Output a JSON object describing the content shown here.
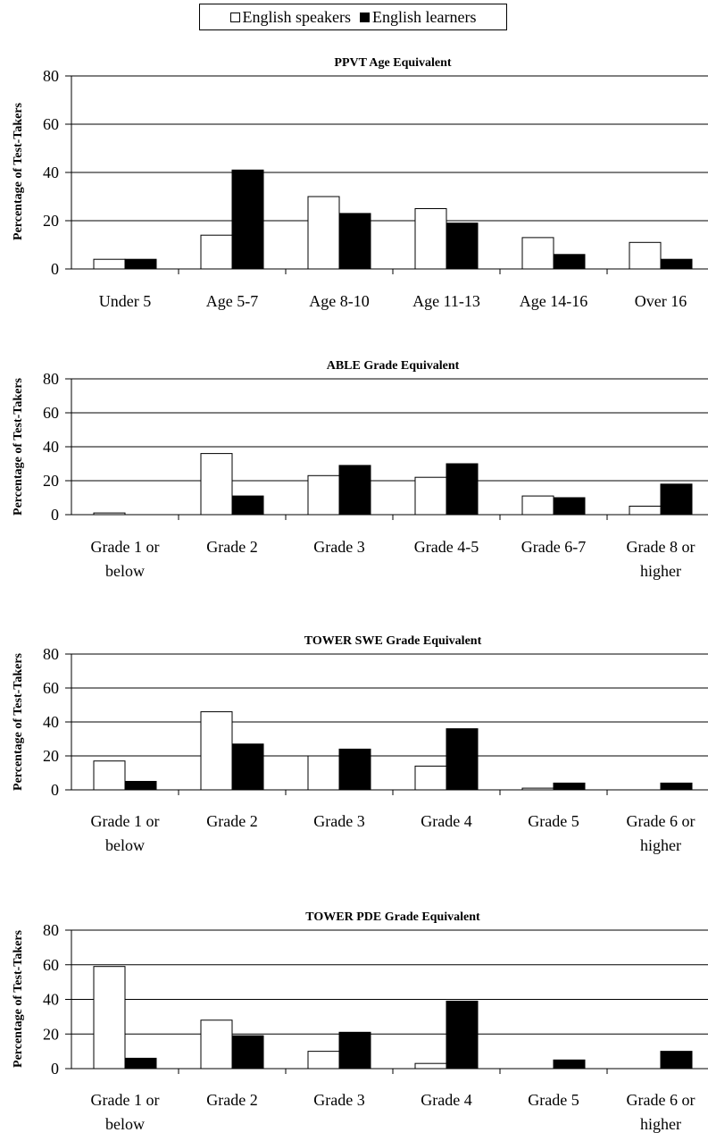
{
  "legend": {
    "english_speakers": "English speakers",
    "english_learners": "English learners"
  },
  "colors": {
    "english_speakers": "#ffffff",
    "english_learners": "#000000"
  },
  "chart_data": [
    {
      "type": "bar",
      "title": "PPVT Age Equivalent",
      "ylabel": "Percentage of Test-Takers",
      "ylim": [
        0,
        80
      ],
      "yticks": [
        "0",
        "20",
        "40",
        "60",
        "80"
      ],
      "grid": true,
      "categories": [
        [
          "Under 5"
        ],
        [
          "Age 5-7"
        ],
        [
          "Age 8-10"
        ],
        [
          "Age 11-13"
        ],
        [
          "Age 14-16"
        ],
        [
          "Over 16"
        ]
      ],
      "series": [
        {
          "name": "English speakers",
          "values": [
            4,
            14,
            30,
            25,
            13,
            11
          ]
        },
        {
          "name": "English learners",
          "values": [
            4,
            41,
            23,
            19,
            6,
            4
          ]
        }
      ]
    },
    {
      "type": "bar",
      "title": "ABLE Grade Equivalent",
      "ylabel": "Percentage of Test-Takers",
      "ylim": [
        0,
        80
      ],
      "yticks": [
        "0",
        "20",
        "40",
        "60",
        "80"
      ],
      "grid": true,
      "categories": [
        [
          "Grade 1 or",
          "below"
        ],
        [
          "Grade 2"
        ],
        [
          "Grade 3"
        ],
        [
          "Grade 4-5"
        ],
        [
          "Grade 6-7"
        ],
        [
          "Grade 8 or",
          "higher"
        ]
      ],
      "series": [
        {
          "name": "English speakers",
          "values": [
            1,
            36,
            23,
            22,
            11,
            5
          ]
        },
        {
          "name": "English learners",
          "values": [
            0,
            11,
            29,
            30,
            10,
            18
          ]
        }
      ]
    },
    {
      "type": "bar",
      "title": "TOWER SWE Grade Equivalent",
      "ylabel": "Percentage of Test-Takers",
      "ylim": [
        0,
        80
      ],
      "yticks": [
        "0",
        "20",
        "40",
        "60",
        "80"
      ],
      "grid": true,
      "categories": [
        [
          "Grade 1 or",
          "below"
        ],
        [
          "Grade 2"
        ],
        [
          "Grade 3"
        ],
        [
          "Grade 4"
        ],
        [
          "Grade 5"
        ],
        [
          "Grade 6 or",
          "higher"
        ]
      ],
      "series": [
        {
          "name": "English speakers",
          "values": [
            17,
            46,
            20,
            14,
            1,
            0
          ]
        },
        {
          "name": "English learners",
          "values": [
            5,
            27,
            24,
            36,
            4,
            4
          ]
        }
      ]
    },
    {
      "type": "bar",
      "title": "TOWER PDE Grade Equivalent",
      "ylabel": "Percentage of Test-Takers",
      "ylim": [
        0,
        80
      ],
      "yticks": [
        "0",
        "20",
        "40",
        "60",
        "80"
      ],
      "grid": true,
      "categories": [
        [
          "Grade 1 or",
          "below"
        ],
        [
          "Grade 2"
        ],
        [
          "Grade 3"
        ],
        [
          "Grade 4"
        ],
        [
          "Grade 5"
        ],
        [
          "Grade 6 or",
          "higher"
        ]
      ],
      "series": [
        {
          "name": "English speakers",
          "values": [
            59,
            28,
            10,
            3,
            0,
            0
          ]
        },
        {
          "name": "English learners",
          "values": [
            6,
            19,
            21,
            39,
            5,
            10
          ]
        }
      ]
    }
  ]
}
